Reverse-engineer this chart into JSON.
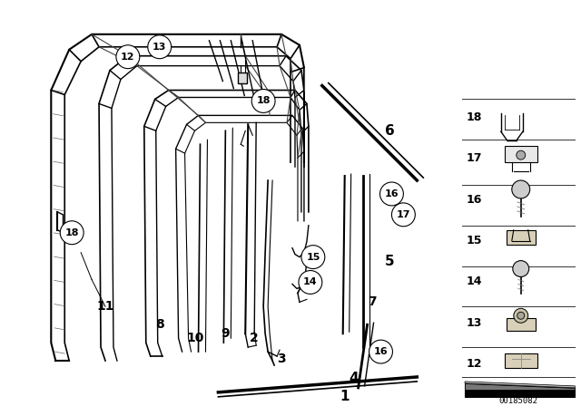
{
  "bg_color": "#ffffff",
  "fig_width": 6.4,
  "fig_height": 4.48,
  "dpi": 100,
  "watermark": "00185082",
  "line_color": "#000000",
  "label_font_size": 9,
  "circle_font_size": 8,
  "circle_r": 0.028
}
